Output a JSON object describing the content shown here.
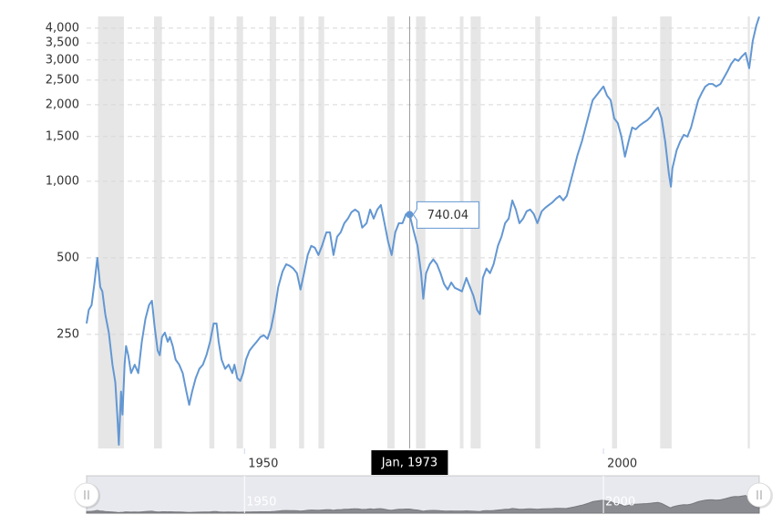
{
  "chart_data": {
    "type": "line",
    "log_y": true,
    "grid": true,
    "color": "#6397d2",
    "shade_color": "#e6e6e6",
    "xlim": [
      1928.0,
      2021.7
    ],
    "xticks": [
      1950,
      2000
    ],
    "ylim": [
      89,
      4450
    ],
    "yticks": [
      250,
      500,
      {
        "value": 1000,
        "label": "1,000"
      },
      {
        "value": 1500,
        "label": "1,500"
      },
      {
        "value": 2000,
        "label": "2,000"
      },
      {
        "value": 2500,
        "label": "2,500"
      },
      {
        "value": 3000,
        "label": "3,000"
      },
      {
        "value": 3500,
        "label": "3,500"
      },
      {
        "value": 4000,
        "label": "4,000"
      }
    ],
    "shaded_ranges": [
      [
        1929.6,
        1933.2
      ],
      [
        1937.4,
        1938.5
      ],
      [
        1945.1,
        1945.8
      ],
      [
        1948.9,
        1949.8
      ],
      [
        1953.5,
        1954.4
      ],
      [
        1957.6,
        1958.3
      ],
      [
        1960.3,
        1961.1
      ],
      [
        1969.9,
        1970.9
      ],
      [
        1973.9,
        1975.2
      ],
      [
        1980.0,
        1980.5
      ],
      [
        1981.5,
        1982.9
      ],
      [
        1990.5,
        1991.2
      ],
      [
        2001.2,
        2001.9
      ],
      [
        2007.9,
        2009.5
      ],
      [
        2020.1,
        2020.4
      ]
    ],
    "tooltip": {
      "x": 1973.0,
      "x_label": "Jan, 1973",
      "value": 740.04
    },
    "x": [
      1928.0,
      1928.3,
      1928.7,
      1929.1,
      1929.5,
      1929.9,
      1930.2,
      1930.6,
      1931.1,
      1931.6,
      1932.0,
      1932.3,
      1932.5,
      1932.8,
      1933.0,
      1933.3,
      1933.5,
      1933.8,
      1934.2,
      1934.7,
      1935.2,
      1935.7,
      1936.2,
      1936.7,
      1937.1,
      1937.5,
      1937.9,
      1938.2,
      1938.5,
      1938.9,
      1939.3,
      1939.6,
      1940.0,
      1940.4,
      1940.9,
      1941.4,
      1941.9,
      1942.3,
      1942.7,
      1943.2,
      1943.7,
      1944.2,
      1944.7,
      1945.2,
      1945.7,
      1946.1,
      1946.4,
      1946.8,
      1947.3,
      1947.8,
      1948.3,
      1948.6,
      1949.0,
      1949.4,
      1949.8,
      1950.2,
      1950.7,
      1951.2,
      1951.7,
      1952.2,
      1952.7,
      1953.2,
      1953.7,
      1954.2,
      1954.7,
      1955.3,
      1955.8,
      1956.3,
      1956.8,
      1957.3,
      1957.8,
      1958.3,
      1958.8,
      1959.3,
      1959.8,
      1960.3,
      1960.8,
      1961.4,
      1961.9,
      1962.4,
      1962.9,
      1963.4,
      1963.9,
      1964.4,
      1964.9,
      1965.4,
      1965.9,
      1966.4,
      1967.0,
      1967.5,
      1968.0,
      1968.5,
      1969.0,
      1969.5,
      1970.0,
      1970.5,
      1971.0,
      1971.5,
      1972.0,
      1972.5,
      1973.0,
      1973.6,
      1974.1,
      1974.6,
      1974.9,
      1975.3,
      1975.8,
      1976.3,
      1976.8,
      1977.3,
      1977.8,
      1978.3,
      1978.8,
      1979.3,
      1979.8,
      1980.3,
      1980.9,
      1981.4,
      1981.9,
      1982.4,
      1982.8,
      1983.2,
      1983.7,
      1984.2,
      1984.7,
      1985.3,
      1985.8,
      1986.3,
      1986.8,
      1987.3,
      1987.8,
      1988.3,
      1988.8,
      1989.3,
      1989.8,
      1990.3,
      1990.8,
      1991.4,
      1991.9,
      1992.4,
      1992.9,
      1993.4,
      1993.9,
      1994.4,
      1994.9,
      1995.4,
      1995.9,
      1996.4,
      1997.0,
      1997.5,
      1998.0,
      1998.5,
      1999.0,
      1999.5,
      2000.0,
      2000.5,
      2001.0,
      2001.5,
      2002.0,
      2002.5,
      2003.0,
      2003.5,
      2004.0,
      2004.5,
      2005.0,
      2005.5,
      2006.1,
      2006.6,
      2007.1,
      2007.6,
      2008.1,
      2008.6,
      2009.1,
      2009.4,
      2009.6,
      2010.2,
      2010.7,
      2011.2,
      2011.7,
      2012.2,
      2012.7,
      2013.2,
      2013.7,
      2014.2,
      2014.7,
      2015.2,
      2015.7,
      2016.3,
      2016.8,
      2017.3,
      2017.8,
      2018.3,
      2018.8,
      2019.3,
      2019.8,
      2020.3,
      2020.8,
      2021.3,
      2021.7
    ],
    "values": [
      276,
      312,
      326,
      400,
      500,
      384,
      369,
      300,
      254,
      190,
      162,
      117,
      92,
      149,
      121,
      190,
      225,
      207,
      176,
      190,
      176,
      234,
      288,
      326,
      339,
      265,
      216,
      207,
      244,
      254,
      234,
      244,
      225,
      199,
      190,
      176,
      149,
      132,
      149,
      168,
      183,
      190,
      207,
      234,
      276,
      276,
      234,
      199,
      183,
      190,
      176,
      190,
      168,
      164,
      176,
      199,
      216,
      225,
      234,
      244,
      248,
      240,
      265,
      312,
      384,
      442,
      472,
      465,
      454,
      435,
      375,
      435,
      513,
      557,
      548,
      513,
      557,
      630,
      630,
      513,
      605,
      630,
      684,
      713,
      756,
      774,
      756,
      657,
      684,
      774,
      713,
      774,
      807,
      684,
      580,
      513,
      630,
      684,
      684,
      743,
      740.04,
      630,
      557,
      435,
      345,
      435,
      472,
      493,
      472,
      435,
      394,
      375,
      400,
      381,
      375,
      369,
      417,
      384,
      354,
      312,
      300,
      417,
      454,
      435,
      472,
      557,
      605,
      684,
      713,
      841,
      774,
      684,
      713,
      762,
      774,
      743,
      684,
      762,
      787,
      807,
      827,
      855,
      876,
      841,
      876,
      992,
      1122,
      1270,
      1437,
      1627,
      1841,
      2084,
      2172,
      2263,
      2359,
      2172,
      2084,
      1767,
      1695,
      1498,
      1250,
      1437,
      1627,
      1600,
      1654,
      1695,
      1738,
      1796,
      1887,
      1950,
      1767,
      1437,
      1077,
      952,
      1122,
      1324,
      1437,
      1523,
      1498,
      1627,
      1841,
      2084,
      2227,
      2359,
      2414,
      2414,
      2359,
      2414,
      2560,
      2713,
      2898,
      3024,
      2975,
      3100,
      3200,
      2783,
      3565,
      4095,
      4440
    ]
  }
}
